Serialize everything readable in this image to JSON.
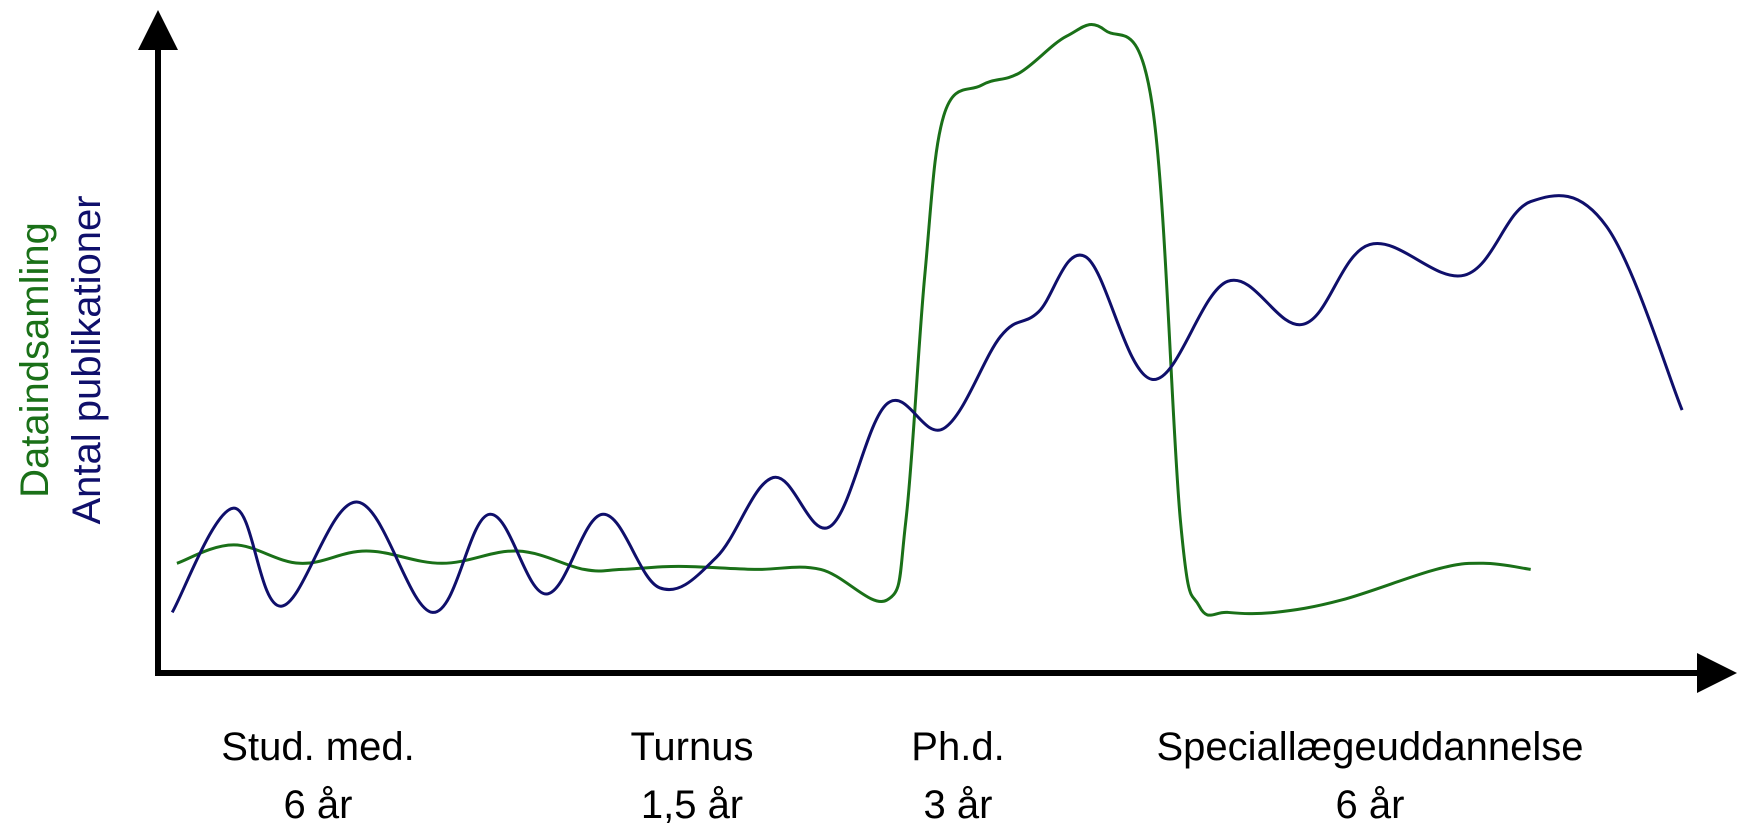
{
  "chart_data": {
    "type": "line",
    "title": "",
    "xlabel": "",
    "ylabel_lines": [
      "Dataindsamling",
      "Antal publikationer"
    ],
    "grid": false,
    "legend": "none",
    "axis_ticks": false,
    "x_unit": "years",
    "xlim": [
      0,
      16.5
    ],
    "ylim": [
      0,
      10
    ],
    "phases": [
      {
        "name": "Stud. med.",
        "duration": "6 år"
      },
      {
        "name": "Turnus",
        "duration": "1,5 år"
      },
      {
        "name": "Ph.d.",
        "duration": "3 år"
      },
      {
        "name": "Speciallægeuddannelse",
        "duration": "6 år"
      }
    ],
    "series": [
      {
        "name": "Dataindsamling",
        "color": "#1a7018",
        "x": [
          0.2,
          0.8,
          1.5,
          2.2,
          3.0,
          3.8,
          4.5,
          4.9,
          5.5,
          6.3,
          7.0,
          7.7,
          7.9,
          8.1,
          8.3,
          8.7,
          9.1,
          9.6,
          10.0,
          10.5,
          10.8,
          11.0,
          11.3,
          11.8,
          12.5,
          13.5,
          14.0,
          14.5
        ],
        "y": [
          1.3,
          1.6,
          1.3,
          1.5,
          1.3,
          1.5,
          1.2,
          1.2,
          1.25,
          1.2,
          1.2,
          0.7,
          2.0,
          6.0,
          8.6,
          9.1,
          9.3,
          9.9,
          10.0,
          8.8,
          2.0,
          0.6,
          0.5,
          0.5,
          0.7,
          1.2,
          1.3,
          1.2
        ]
      },
      {
        "name": "Antal publikationer",
        "color": "#0f0f6b",
        "x": [
          0.15,
          0.8,
          1.3,
          2.1,
          2.9,
          3.5,
          4.1,
          4.7,
          5.3,
          5.9,
          6.5,
          7.1,
          7.7,
          8.3,
          8.9,
          9.3,
          9.8,
          10.5,
          11.3,
          12.1,
          12.8,
          13.8,
          14.5,
          15.3,
          16.1
        ],
        "y": [
          0.5,
          2.2,
          0.6,
          2.3,
          0.5,
          2.1,
          0.8,
          2.1,
          0.9,
          1.4,
          2.7,
          1.9,
          3.9,
          3.5,
          5.0,
          5.4,
          6.3,
          4.3,
          5.9,
          5.2,
          6.5,
          6.0,
          7.2,
          6.8,
          3.8
        ]
      }
    ]
  }
}
